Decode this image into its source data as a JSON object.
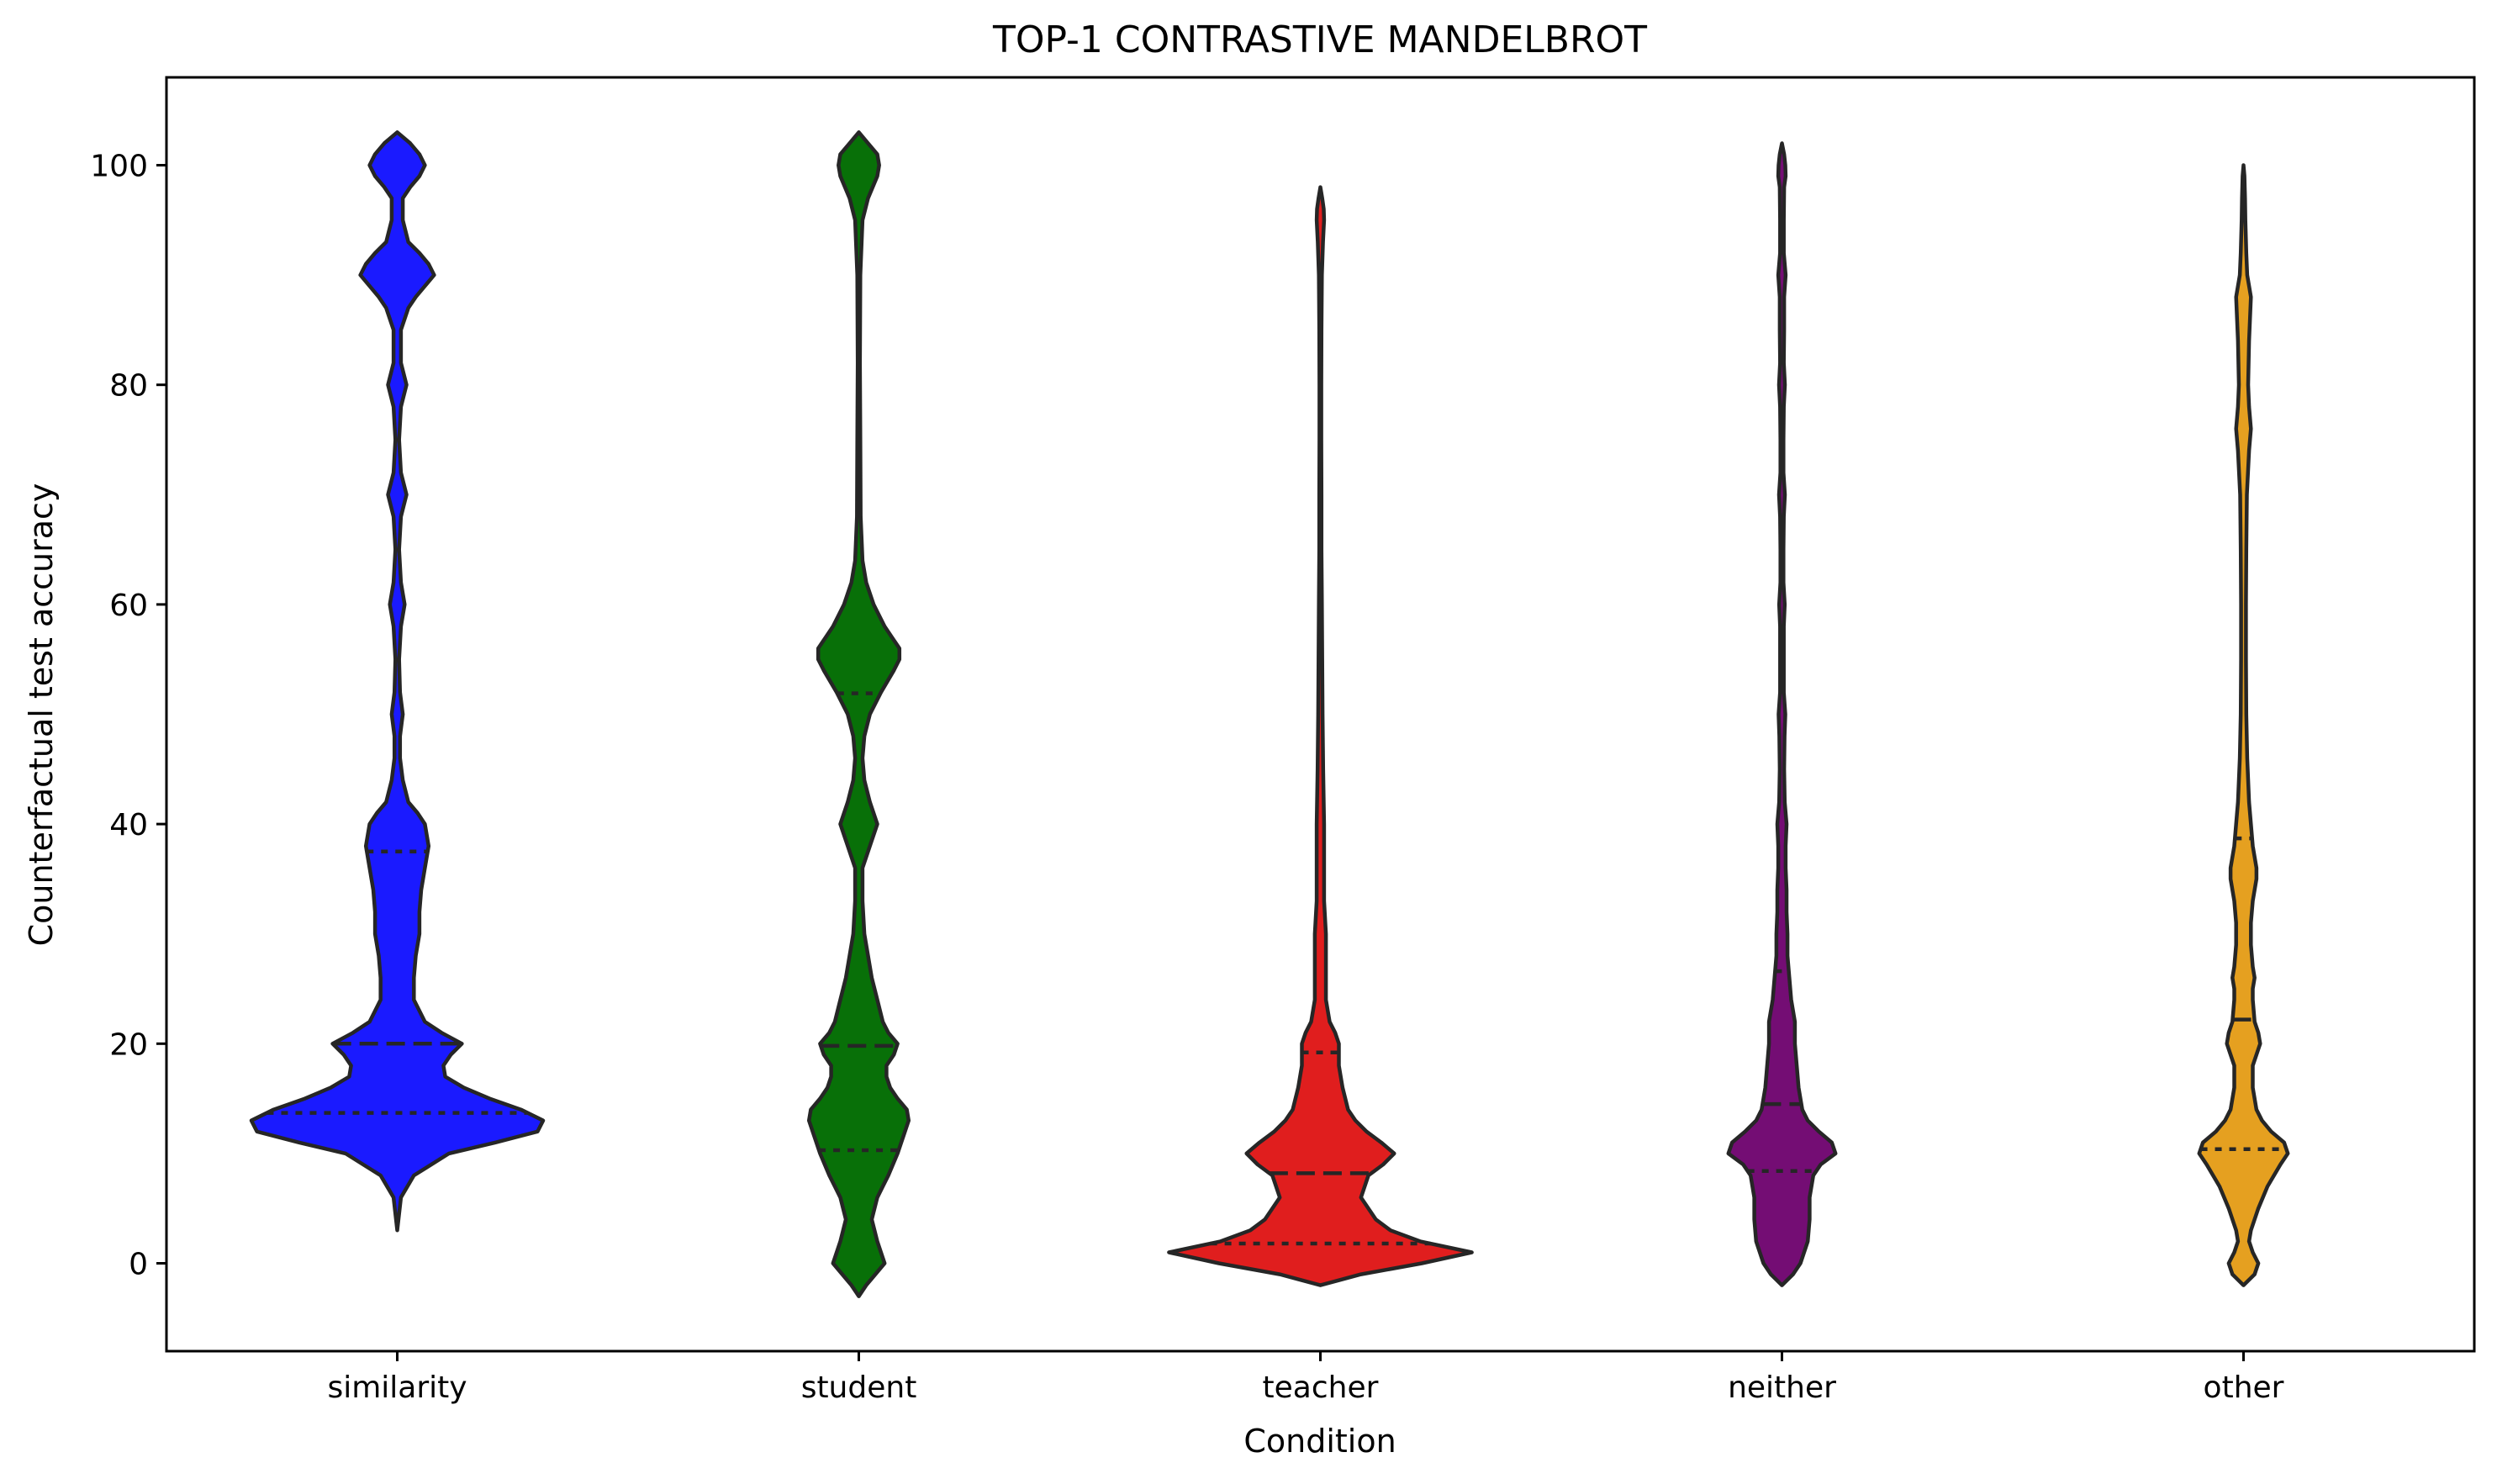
{
  "chart_data": {
    "type": "violin",
    "title": "TOP-1 CONTRASTIVE MANDELBROT",
    "xlabel": "Condition",
    "ylabel": "Counterfactual test accuracy",
    "ylim": [
      -8,
      108
    ],
    "yticks": [
      0,
      20,
      40,
      60,
      80,
      100
    ],
    "grid": false,
    "legend": "none",
    "categories": [
      "similarity",
      "student",
      "teacher",
      "neither",
      "other"
    ],
    "colors": [
      "#1a1aff",
      "#087008",
      "#e01e1e",
      "#740d74",
      "#e5a020"
    ],
    "outline_color": "#262626",
    "series": [
      {
        "quartiles": [
          13.7,
          20.0,
          37.5
        ],
        "profile": [
          [
            3.0,
            0.0
          ],
          [
            6.0,
            0.02
          ],
          [
            8.0,
            0.09
          ],
          [
            10.0,
            0.28
          ],
          [
            11.0,
            0.53
          ],
          [
            12.0,
            0.76
          ],
          [
            13.0,
            0.79
          ],
          [
            14.0,
            0.67
          ],
          [
            15.0,
            0.5
          ],
          [
            16.0,
            0.36
          ],
          [
            17.0,
            0.26
          ],
          [
            18.0,
            0.25
          ],
          [
            19.0,
            0.29
          ],
          [
            20.0,
            0.35
          ],
          [
            21.0,
            0.24
          ],
          [
            22.0,
            0.15
          ],
          [
            24.0,
            0.09
          ],
          [
            26.0,
            0.09
          ],
          [
            28.0,
            0.1
          ],
          [
            30.0,
            0.12
          ],
          [
            32.0,
            0.12
          ],
          [
            34.0,
            0.13
          ],
          [
            36.0,
            0.15
          ],
          [
            38.0,
            0.17
          ],
          [
            40.0,
            0.15
          ],
          [
            41.0,
            0.11
          ],
          [
            42.0,
            0.06
          ],
          [
            44.0,
            0.03
          ],
          [
            46.0,
            0.015
          ],
          [
            48.0,
            0.015
          ],
          [
            50.0,
            0.03
          ],
          [
            52.0,
            0.015
          ],
          [
            55.0,
            0.01
          ],
          [
            58.0,
            0.02
          ],
          [
            60.0,
            0.04
          ],
          [
            62.0,
            0.02
          ],
          [
            65.0,
            0.01
          ],
          [
            68.0,
            0.02
          ],
          [
            70.0,
            0.05
          ],
          [
            72.0,
            0.02
          ],
          [
            75.0,
            0.01
          ],
          [
            78.0,
            0.02
          ],
          [
            80.0,
            0.05
          ],
          [
            82.0,
            0.02
          ],
          [
            85.0,
            0.02
          ],
          [
            87.0,
            0.06
          ],
          [
            88.0,
            0.1
          ],
          [
            90.0,
            0.2
          ],
          [
            91.0,
            0.17
          ],
          [
            92.0,
            0.12
          ],
          [
            93.0,
            0.06
          ],
          [
            95.0,
            0.03
          ],
          [
            97.0,
            0.03
          ],
          [
            98.0,
            0.07
          ],
          [
            99.0,
            0.12
          ],
          [
            100.0,
            0.15
          ],
          [
            101.0,
            0.12
          ],
          [
            102.0,
            0.07
          ],
          [
            103.0,
            0.0
          ]
        ]
      },
      {
        "quartiles": [
          10.3,
          19.8,
          51.9
        ],
        "profile": [
          [
            -3.0,
            0.0
          ],
          [
            -2.0,
            0.04
          ],
          [
            0.0,
            0.14
          ],
          [
            2.0,
            0.1
          ],
          [
            4.0,
            0.07
          ],
          [
            6.0,
            0.1
          ],
          [
            7.0,
            0.13
          ],
          [
            8.0,
            0.16
          ],
          [
            10.0,
            0.21
          ],
          [
            12.0,
            0.25
          ],
          [
            13.0,
            0.27
          ],
          [
            14.0,
            0.26
          ],
          [
            15.0,
            0.21
          ],
          [
            16.0,
            0.17
          ],
          [
            17.0,
            0.15
          ],
          [
            18.0,
            0.15
          ],
          [
            19.0,
            0.19
          ],
          [
            20.0,
            0.21
          ],
          [
            21.0,
            0.16
          ],
          [
            22.0,
            0.13
          ],
          [
            24.0,
            0.1
          ],
          [
            26.0,
            0.07
          ],
          [
            28.0,
            0.05
          ],
          [
            30.0,
            0.03
          ],
          [
            33.0,
            0.02
          ],
          [
            36.0,
            0.02
          ],
          [
            38.0,
            0.06
          ],
          [
            40.0,
            0.1
          ],
          [
            42.0,
            0.06
          ],
          [
            44.0,
            0.03
          ],
          [
            46.0,
            0.02
          ],
          [
            48.0,
            0.03
          ],
          [
            50.0,
            0.06
          ],
          [
            52.0,
            0.12
          ],
          [
            54.0,
            0.19
          ],
          [
            55.0,
            0.22
          ],
          [
            56.0,
            0.22
          ],
          [
            57.0,
            0.18
          ],
          [
            58.0,
            0.14
          ],
          [
            60.0,
            0.08
          ],
          [
            62.0,
            0.04
          ],
          [
            64.0,
            0.02
          ],
          [
            68.0,
            0.01
          ],
          [
            75.0,
            0.008
          ],
          [
            82.0,
            0.006
          ],
          [
            90.0,
            0.008
          ],
          [
            95.0,
            0.02
          ],
          [
            97.0,
            0.05
          ],
          [
            99.0,
            0.1
          ],
          [
            100.0,
            0.11
          ],
          [
            101.0,
            0.1
          ],
          [
            102.0,
            0.05
          ],
          [
            103.0,
            0.0
          ]
        ]
      },
      {
        "quartiles": [
          1.8,
          8.2,
          19.2
        ],
        "profile": [
          [
            -2.0,
            0.0
          ],
          [
            -1.0,
            0.22
          ],
          [
            0.0,
            0.55
          ],
          [
            1.0,
            0.82
          ],
          [
            2.0,
            0.54
          ],
          [
            3.0,
            0.38
          ],
          [
            4.0,
            0.3
          ],
          [
            6.0,
            0.22
          ],
          [
            8.0,
            0.26
          ],
          [
            9.0,
            0.34
          ],
          [
            10.0,
            0.4
          ],
          [
            11.0,
            0.33
          ],
          [
            12.0,
            0.25
          ],
          [
            13.0,
            0.19
          ],
          [
            14.0,
            0.15
          ],
          [
            16.0,
            0.12
          ],
          [
            18.0,
            0.1
          ],
          [
            19.0,
            0.1
          ],
          [
            20.0,
            0.1
          ],
          [
            21.0,
            0.08
          ],
          [
            22.0,
            0.05
          ],
          [
            24.0,
            0.03
          ],
          [
            27.0,
            0.03
          ],
          [
            30.0,
            0.03
          ],
          [
            33.0,
            0.02
          ],
          [
            36.0,
            0.02
          ],
          [
            40.0,
            0.02
          ],
          [
            45.0,
            0.015
          ],
          [
            50.0,
            0.012
          ],
          [
            55.0,
            0.01
          ],
          [
            60.0,
            0.008
          ],
          [
            65.0,
            0.006
          ],
          [
            70.0,
            0.006
          ],
          [
            75.0,
            0.005
          ],
          [
            80.0,
            0.005
          ],
          [
            85.0,
            0.006
          ],
          [
            90.0,
            0.008
          ],
          [
            93.0,
            0.014
          ],
          [
            95.0,
            0.02
          ],
          [
            96.0,
            0.018
          ],
          [
            97.0,
            0.01
          ],
          [
            98.0,
            0.0
          ]
        ]
      },
      {
        "quartiles": [
          8.4,
          14.5,
          26.6
        ],
        "profile": [
          [
            -2.0,
            0.0
          ],
          [
            -1.0,
            0.06
          ],
          [
            0.0,
            0.1
          ],
          [
            2.0,
            0.14
          ],
          [
            4.0,
            0.15
          ],
          [
            6.0,
            0.15
          ],
          [
            8.0,
            0.17
          ],
          [
            9.0,
            0.21
          ],
          [
            10.0,
            0.29
          ],
          [
            11.0,
            0.27
          ],
          [
            12.0,
            0.2
          ],
          [
            13.0,
            0.14
          ],
          [
            14.0,
            0.11
          ],
          [
            16.0,
            0.09
          ],
          [
            18.0,
            0.08
          ],
          [
            20.0,
            0.07
          ],
          [
            22.0,
            0.07
          ],
          [
            24.0,
            0.05
          ],
          [
            26.0,
            0.04
          ],
          [
            28.0,
            0.03
          ],
          [
            30.0,
            0.03
          ],
          [
            32.0,
            0.025
          ],
          [
            34.0,
            0.025
          ],
          [
            36.0,
            0.02
          ],
          [
            38.0,
            0.02
          ],
          [
            40.0,
            0.025
          ],
          [
            42.0,
            0.015
          ],
          [
            45.0,
            0.012
          ],
          [
            48.0,
            0.014
          ],
          [
            50.0,
            0.018
          ],
          [
            52.0,
            0.01
          ],
          [
            55.0,
            0.01
          ],
          [
            58.0,
            0.01
          ],
          [
            60.0,
            0.015
          ],
          [
            62.0,
            0.008
          ],
          [
            65.0,
            0.008
          ],
          [
            68.0,
            0.01
          ],
          [
            70.0,
            0.016
          ],
          [
            72.0,
            0.008
          ],
          [
            75.0,
            0.008
          ],
          [
            78.0,
            0.01
          ],
          [
            80.0,
            0.016
          ],
          [
            82.0,
            0.01
          ],
          [
            85.0,
            0.012
          ],
          [
            88.0,
            0.012
          ],
          [
            90.0,
            0.02
          ],
          [
            92.0,
            0.01
          ],
          [
            95.0,
            0.01
          ],
          [
            98.0,
            0.012
          ],
          [
            99.0,
            0.02
          ],
          [
            100.0,
            0.018
          ],
          [
            101.0,
            0.012
          ],
          [
            102.0,
            0.0
          ]
        ]
      },
      {
        "quartiles": [
          10.4,
          22.2,
          38.7
        ],
        "profile": [
          [
            -2.0,
            0.0
          ],
          [
            -1.0,
            0.06
          ],
          [
            0.0,
            0.08
          ],
          [
            1.0,
            0.05
          ],
          [
            2.0,
            0.03
          ],
          [
            3.0,
            0.04
          ],
          [
            5.0,
            0.08
          ],
          [
            7.0,
            0.13
          ],
          [
            9.0,
            0.2
          ],
          [
            10.0,
            0.24
          ],
          [
            11.0,
            0.22
          ],
          [
            12.0,
            0.15
          ],
          [
            13.0,
            0.1
          ],
          [
            14.0,
            0.07
          ],
          [
            16.0,
            0.05
          ],
          [
            18.0,
            0.05
          ],
          [
            19.0,
            0.07
          ],
          [
            20.0,
            0.09
          ],
          [
            21.0,
            0.08
          ],
          [
            22.0,
            0.06
          ],
          [
            24.0,
            0.05
          ],
          [
            25.0,
            0.05
          ],
          [
            26.0,
            0.06
          ],
          [
            27.0,
            0.05
          ],
          [
            29.0,
            0.04
          ],
          [
            31.0,
            0.04
          ],
          [
            33.0,
            0.05
          ],
          [
            35.0,
            0.07
          ],
          [
            36.0,
            0.07
          ],
          [
            37.0,
            0.06
          ],
          [
            38.0,
            0.05
          ],
          [
            40.0,
            0.04
          ],
          [
            42.0,
            0.03
          ],
          [
            44.0,
            0.025
          ],
          [
            46.0,
            0.02
          ],
          [
            50.0,
            0.015
          ],
          [
            55.0,
            0.013
          ],
          [
            60.0,
            0.013
          ],
          [
            65.0,
            0.015
          ],
          [
            70.0,
            0.018
          ],
          [
            74.0,
            0.03
          ],
          [
            76.0,
            0.04
          ],
          [
            78.0,
            0.03
          ],
          [
            80.0,
            0.025
          ],
          [
            84.0,
            0.03
          ],
          [
            86.0,
            0.035
          ],
          [
            88.0,
            0.04
          ],
          [
            89.0,
            0.03
          ],
          [
            90.0,
            0.02
          ],
          [
            92.0,
            0.015
          ],
          [
            95.0,
            0.01
          ],
          [
            97.0,
            0.008
          ],
          [
            99.0,
            0.005
          ],
          [
            100.0,
            0.0
          ]
        ]
      }
    ]
  }
}
